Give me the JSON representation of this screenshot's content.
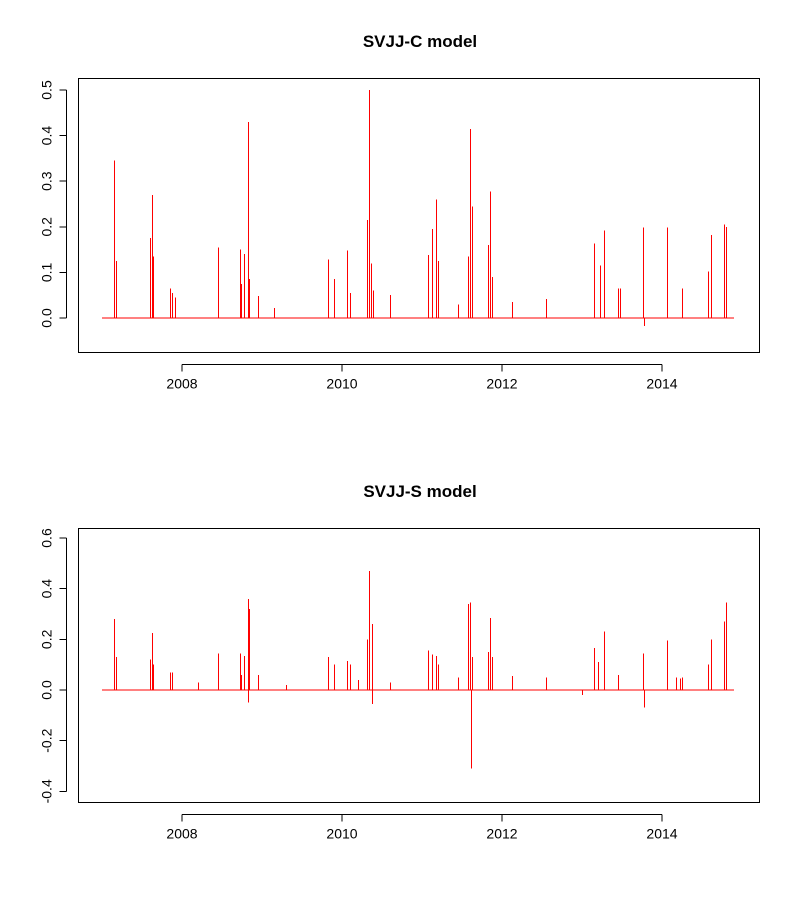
{
  "chart_data": [
    {
      "type": "line",
      "title": "SVJJ-C model",
      "xlabel": "",
      "ylabel": "",
      "color": "#ff0000",
      "xlim": [
        2007.0,
        2015.0
      ],
      "ylim": [
        -0.07,
        0.52
      ],
      "xticks": [
        2008,
        2010,
        2012,
        2014
      ],
      "xtick_labels": [
        "2008",
        "2010",
        "2012",
        "2014"
      ],
      "yticks": [
        0.0,
        0.1,
        0.2,
        0.3,
        0.4,
        0.5
      ],
      "ytick_labels": [
        "0.0",
        "0.1",
        "0.2",
        "0.3",
        "0.4",
        "0.5"
      ],
      "grid": false,
      "x": [
        2007.15,
        2007.18,
        2007.6,
        2007.62,
        2007.64,
        2007.85,
        2007.88,
        2007.91,
        2008.45,
        2008.72,
        2008.74,
        2008.78,
        2008.82,
        2008.84,
        2008.95,
        2009.15,
        2009.83,
        2009.9,
        2010.06,
        2010.1,
        2010.31,
        2010.34,
        2010.36,
        2010.39,
        2010.6,
        2011.07,
        2011.12,
        2011.17,
        2011.2,
        2011.45,
        2011.58,
        2011.6,
        2011.62,
        2011.82,
        2011.85,
        2011.87,
        2012.12,
        2012.55,
        2013.15,
        2013.22,
        2013.27,
        2013.45,
        2013.48,
        2013.76,
        2013.77,
        2014.06,
        2014.25,
        2014.58,
        2014.61,
        2014.78,
        2014.8
      ],
      "y": [
        0.345,
        0.125,
        0.175,
        0.27,
        0.135,
        0.065,
        0.055,
        0.045,
        0.155,
        0.15,
        0.075,
        0.14,
        0.43,
        0.085,
        0.048,
        0.022,
        0.128,
        0.085,
        0.148,
        0.055,
        0.215,
        0.5,
        0.12,
        0.06,
        0.05,
        0.138,
        0.195,
        0.26,
        0.125,
        0.03,
        0.135,
        0.415,
        0.245,
        0.16,
        0.277,
        0.09,
        0.035,
        0.042,
        0.163,
        0.115,
        0.192,
        0.065,
        0.065,
        0.198,
        -0.018,
        0.198,
        0.065,
        0.102,
        0.182,
        0.205,
        0.2
      ]
    },
    {
      "type": "line",
      "title": "SVJJ-S model",
      "xlabel": "",
      "ylabel": "",
      "color": "#ff0000",
      "xlim": [
        2007.0,
        2015.0
      ],
      "ylim": [
        -0.44,
        0.62
      ],
      "xticks": [
        2008,
        2010,
        2012,
        2014
      ],
      "xtick_labels": [
        "2008",
        "2010",
        "2012",
        "2014"
      ],
      "yticks": [
        -0.4,
        -0.2,
        0.0,
        0.2,
        0.4,
        0.6
      ],
      "ytick_labels": [
        "-0.4",
        "-0.2",
        "0.0",
        "0.2",
        "0.4",
        "0.6"
      ],
      "grid": false,
      "x": [
        2007.15,
        2007.18,
        2007.6,
        2007.62,
        2007.64,
        2007.85,
        2007.88,
        2008.2,
        2008.45,
        2008.72,
        2008.74,
        2008.78,
        2008.82,
        2008.84,
        2008.83,
        2008.95,
        2009.3,
        2009.83,
        2009.9,
        2010.06,
        2010.1,
        2010.2,
        2010.31,
        2010.34,
        2010.37,
        2010.38,
        2010.6,
        2011.07,
        2011.12,
        2011.17,
        2011.2,
        2011.45,
        2011.58,
        2011.6,
        2011.62,
        2011.61,
        2011.82,
        2011.85,
        2011.87,
        2012.12,
        2012.55,
        2013.0,
        2013.15,
        2013.2,
        2013.27,
        2013.45,
        2013.76,
        2013.77,
        2014.06,
        2014.18,
        2014.22,
        2014.25,
        2014.58,
        2014.61,
        2014.78,
        2014.8
      ],
      "y": [
        0.28,
        0.13,
        0.12,
        0.225,
        0.1,
        0.07,
        0.07,
        0.03,
        0.145,
        0.145,
        0.06,
        0.135,
        0.36,
        0.32,
        -0.05,
        0.06,
        0.02,
        0.13,
        0.1,
        0.115,
        0.1,
        0.04,
        0.2,
        0.47,
        0.26,
        -0.055,
        0.03,
        0.155,
        0.14,
        0.135,
        0.1,
        0.05,
        0.34,
        0.345,
        0.13,
        -0.31,
        0.15,
        0.285,
        0.13,
        0.055,
        0.05,
        -0.02,
        0.165,
        0.11,
        0.23,
        0.06,
        0.145,
        -0.07,
        0.195,
        0.05,
        0.045,
        0.05,
        0.1,
        0.2,
        0.27,
        0.345
      ]
    }
  ]
}
